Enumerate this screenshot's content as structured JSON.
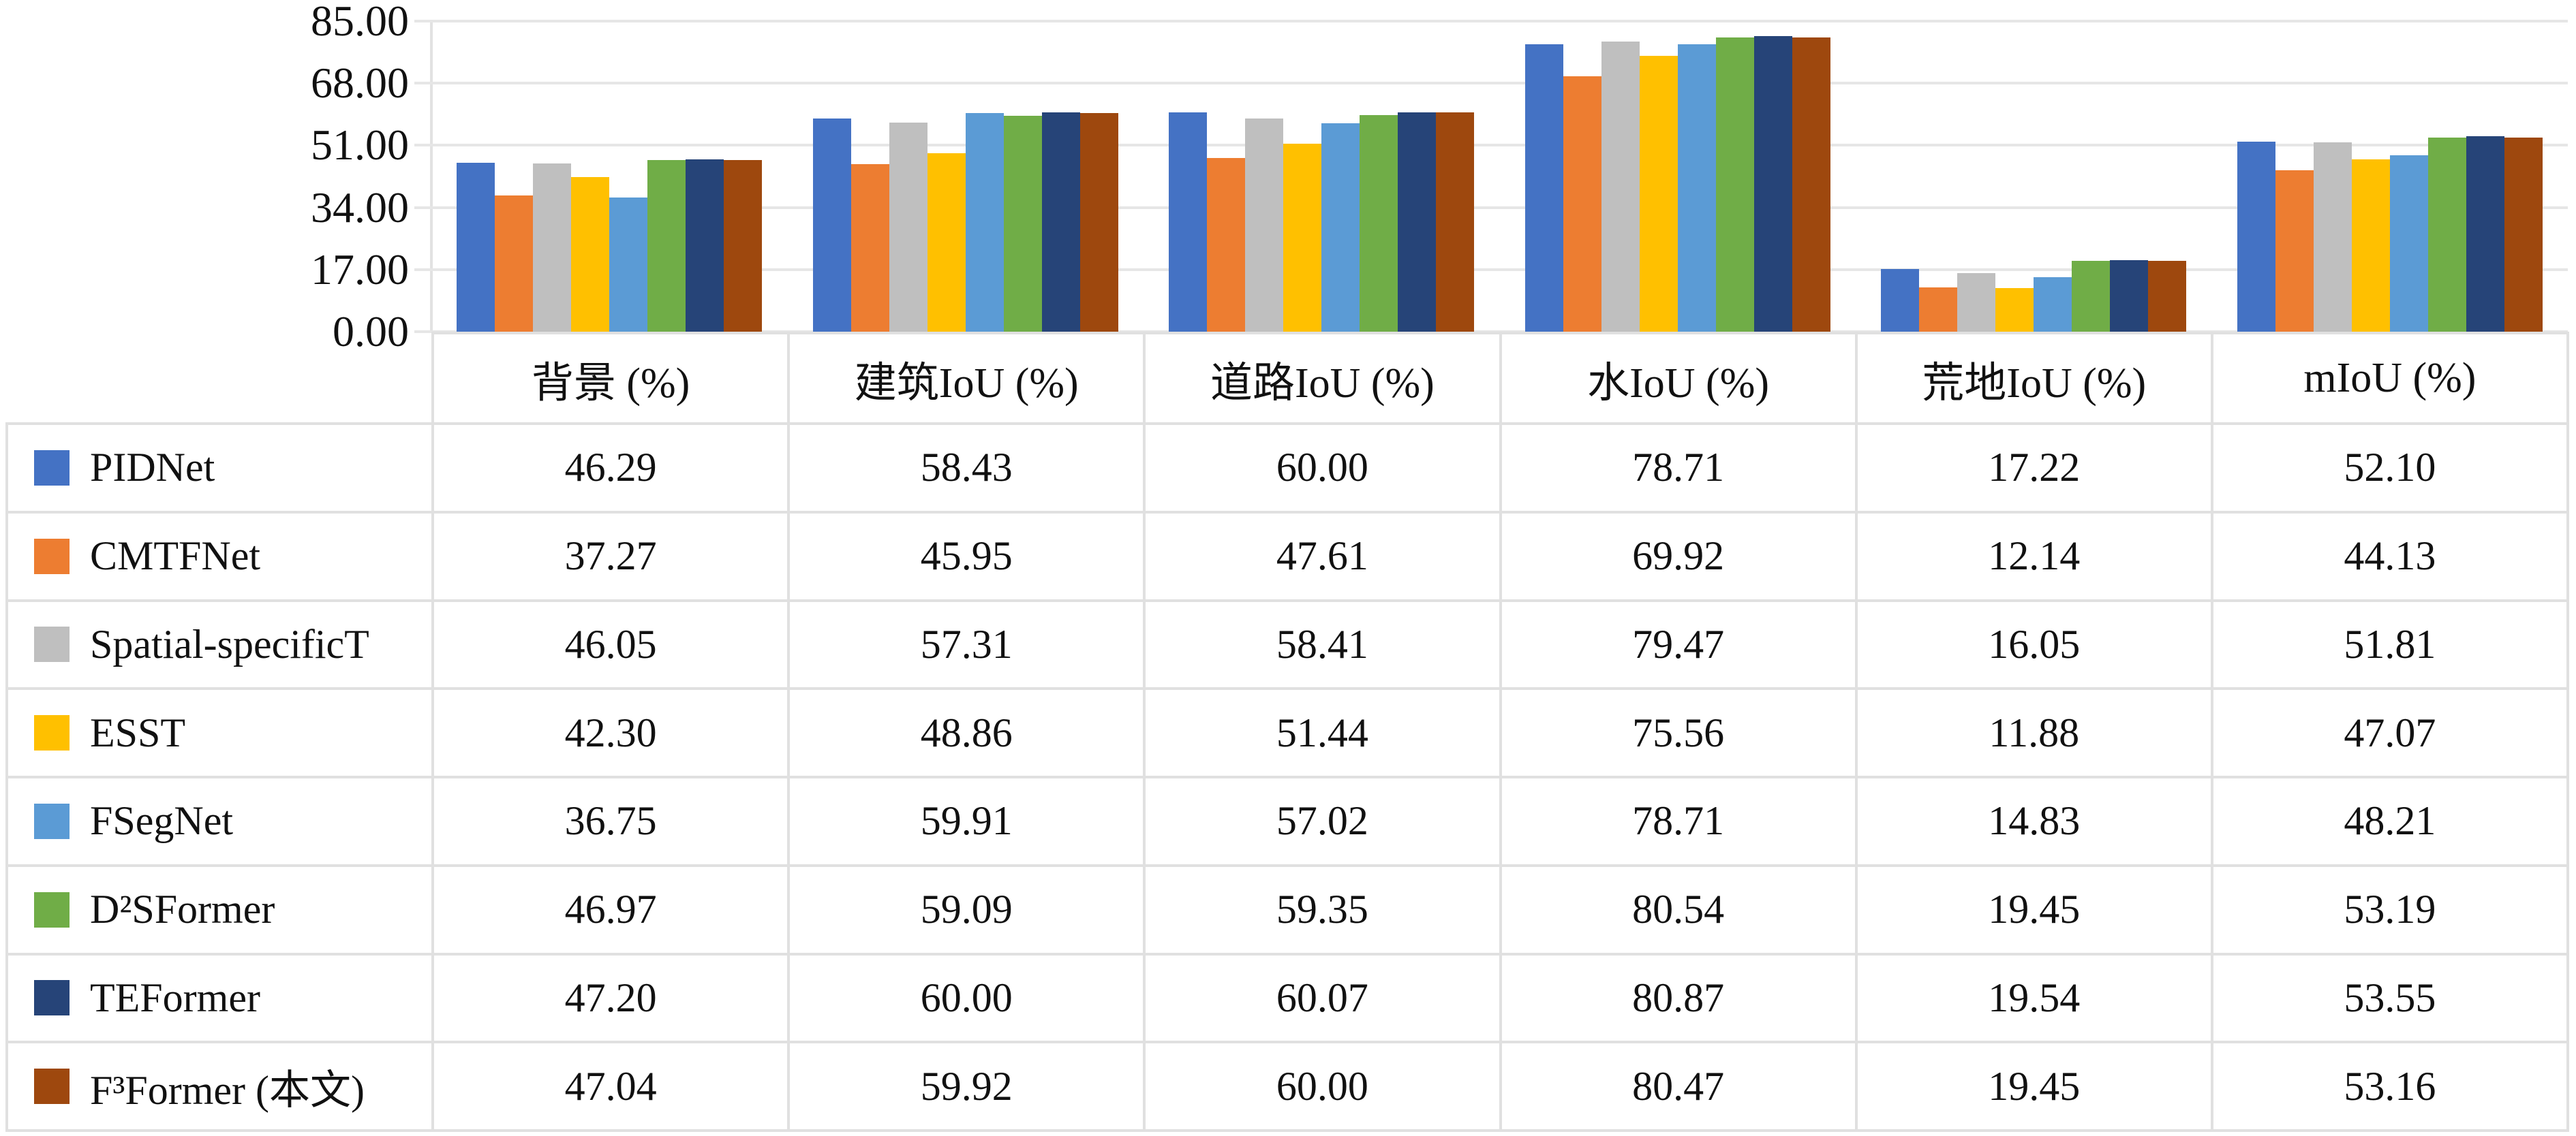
{
  "chart_data": {
    "type": "bar",
    "title": "",
    "xlabel": "",
    "ylabel": "",
    "ylim": [
      0,
      85
    ],
    "yticks": [
      "85.00",
      "68.00",
      "51.00",
      "34.00",
      "17.00",
      "0.00"
    ],
    "grid": true,
    "legend_position": "table-first-column",
    "value_format_decimals": 2,
    "categories": [
      "背景 (%)",
      "建筑IoU (%)",
      "道路IoU (%)",
      "水IoU (%)",
      "荒地IoU (%)",
      "mIoU (%)"
    ],
    "series": [
      {
        "name": "PIDNet",
        "color": "#4472C4",
        "values": [
          46.29,
          58.43,
          60.0,
          78.71,
          17.22,
          52.1
        ]
      },
      {
        "name": "CMTFNet",
        "color": "#ED7D31",
        "values": [
          37.27,
          45.95,
          47.61,
          69.92,
          12.14,
          44.13
        ]
      },
      {
        "name": "Spatial-specificT",
        "color": "#BFBFBF",
        "values": [
          46.05,
          57.31,
          58.41,
          79.47,
          16.05,
          51.81
        ]
      },
      {
        "name": "ESST",
        "color": "#FFC000",
        "values": [
          42.3,
          48.86,
          51.44,
          75.56,
          11.88,
          47.07
        ]
      },
      {
        "name": "FSegNet",
        "color": "#5B9BD5",
        "values": [
          36.75,
          59.91,
          57.02,
          78.71,
          14.83,
          48.21
        ]
      },
      {
        "name": "D²SFormer",
        "color": "#70AD47",
        "values": [
          46.97,
          59.09,
          59.35,
          80.54,
          19.45,
          53.19
        ]
      },
      {
        "name": "TEFormer",
        "color": "#264478",
        "values": [
          47.2,
          60.0,
          60.07,
          80.87,
          19.54,
          53.55
        ]
      },
      {
        "name": "F³Former (本文)",
        "color": "#9E480E",
        "values": [
          47.04,
          59.92,
          60.0,
          80.47,
          19.45,
          53.16
        ]
      }
    ]
  }
}
